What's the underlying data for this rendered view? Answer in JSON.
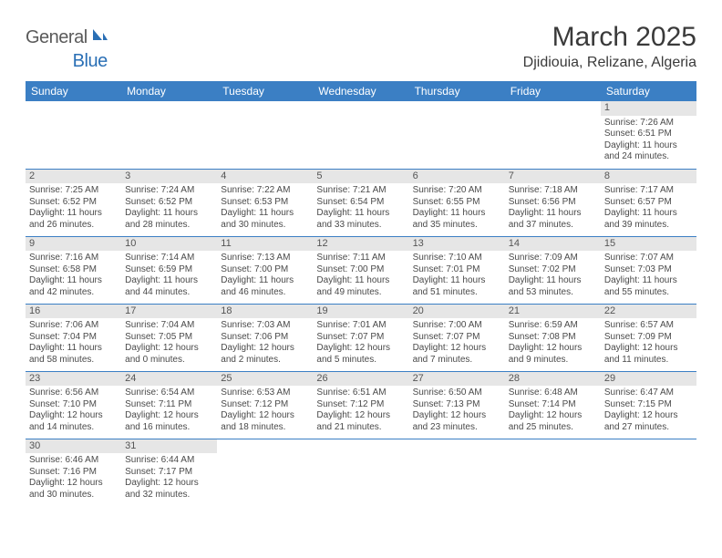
{
  "logo": {
    "general": "General",
    "blue": "Blue"
  },
  "title": "March 2025",
  "location": "Djidiouia, Relizane, Algeria",
  "colors": {
    "header_bg": "#3b7fc4",
    "header_text": "#ffffff",
    "daynum_bg": "#e6e6e6",
    "cell_border": "#3b7fc4",
    "text": "#4a4a4a",
    "logo_gray": "#5a5a5a",
    "logo_blue": "#2a6fb5"
  },
  "weekdays": [
    "Sunday",
    "Monday",
    "Tuesday",
    "Wednesday",
    "Thursday",
    "Friday",
    "Saturday"
  ],
  "grid": [
    [
      null,
      null,
      null,
      null,
      null,
      null,
      {
        "n": "1",
        "sr": "7:26 AM",
        "ss": "6:51 PM",
        "dh": "11",
        "dm": "24"
      }
    ],
    [
      {
        "n": "2",
        "sr": "7:25 AM",
        "ss": "6:52 PM",
        "dh": "11",
        "dm": "26"
      },
      {
        "n": "3",
        "sr": "7:24 AM",
        "ss": "6:52 PM",
        "dh": "11",
        "dm": "28"
      },
      {
        "n": "4",
        "sr": "7:22 AM",
        "ss": "6:53 PM",
        "dh": "11",
        "dm": "30"
      },
      {
        "n": "5",
        "sr": "7:21 AM",
        "ss": "6:54 PM",
        "dh": "11",
        "dm": "33"
      },
      {
        "n": "6",
        "sr": "7:20 AM",
        "ss": "6:55 PM",
        "dh": "11",
        "dm": "35"
      },
      {
        "n": "7",
        "sr": "7:18 AM",
        "ss": "6:56 PM",
        "dh": "11",
        "dm": "37"
      },
      {
        "n": "8",
        "sr": "7:17 AM",
        "ss": "6:57 PM",
        "dh": "11",
        "dm": "39"
      }
    ],
    [
      {
        "n": "9",
        "sr": "7:16 AM",
        "ss": "6:58 PM",
        "dh": "11",
        "dm": "42"
      },
      {
        "n": "10",
        "sr": "7:14 AM",
        "ss": "6:59 PM",
        "dh": "11",
        "dm": "44"
      },
      {
        "n": "11",
        "sr": "7:13 AM",
        "ss": "7:00 PM",
        "dh": "11",
        "dm": "46"
      },
      {
        "n": "12",
        "sr": "7:11 AM",
        "ss": "7:00 PM",
        "dh": "11",
        "dm": "49"
      },
      {
        "n": "13",
        "sr": "7:10 AM",
        "ss": "7:01 PM",
        "dh": "11",
        "dm": "51"
      },
      {
        "n": "14",
        "sr": "7:09 AM",
        "ss": "7:02 PM",
        "dh": "11",
        "dm": "53"
      },
      {
        "n": "15",
        "sr": "7:07 AM",
        "ss": "7:03 PM",
        "dh": "11",
        "dm": "55"
      }
    ],
    [
      {
        "n": "16",
        "sr": "7:06 AM",
        "ss": "7:04 PM",
        "dh": "11",
        "dm": "58"
      },
      {
        "n": "17",
        "sr": "7:04 AM",
        "ss": "7:05 PM",
        "dh": "12",
        "dm": "0"
      },
      {
        "n": "18",
        "sr": "7:03 AM",
        "ss": "7:06 PM",
        "dh": "12",
        "dm": "2"
      },
      {
        "n": "19",
        "sr": "7:01 AM",
        "ss": "7:07 PM",
        "dh": "12",
        "dm": "5"
      },
      {
        "n": "20",
        "sr": "7:00 AM",
        "ss": "7:07 PM",
        "dh": "12",
        "dm": "7"
      },
      {
        "n": "21",
        "sr": "6:59 AM",
        "ss": "7:08 PM",
        "dh": "12",
        "dm": "9"
      },
      {
        "n": "22",
        "sr": "6:57 AM",
        "ss": "7:09 PM",
        "dh": "12",
        "dm": "11"
      }
    ],
    [
      {
        "n": "23",
        "sr": "6:56 AM",
        "ss": "7:10 PM",
        "dh": "12",
        "dm": "14"
      },
      {
        "n": "24",
        "sr": "6:54 AM",
        "ss": "7:11 PM",
        "dh": "12",
        "dm": "16"
      },
      {
        "n": "25",
        "sr": "6:53 AM",
        "ss": "7:12 PM",
        "dh": "12",
        "dm": "18"
      },
      {
        "n": "26",
        "sr": "6:51 AM",
        "ss": "7:12 PM",
        "dh": "12",
        "dm": "21"
      },
      {
        "n": "27",
        "sr": "6:50 AM",
        "ss": "7:13 PM",
        "dh": "12",
        "dm": "23"
      },
      {
        "n": "28",
        "sr": "6:48 AM",
        "ss": "7:14 PM",
        "dh": "12",
        "dm": "25"
      },
      {
        "n": "29",
        "sr": "6:47 AM",
        "ss": "7:15 PM",
        "dh": "12",
        "dm": "27"
      }
    ],
    [
      {
        "n": "30",
        "sr": "6:46 AM",
        "ss": "7:16 PM",
        "dh": "12",
        "dm": "30"
      },
      {
        "n": "31",
        "sr": "6:44 AM",
        "ss": "7:17 PM",
        "dh": "12",
        "dm": "32"
      },
      null,
      null,
      null,
      null,
      null
    ]
  ],
  "labels": {
    "sunrise": "Sunrise:",
    "sunset": "Sunset:",
    "daylight": "Daylight:",
    "hours": "hours",
    "and": "and",
    "minutes": "minutes."
  }
}
